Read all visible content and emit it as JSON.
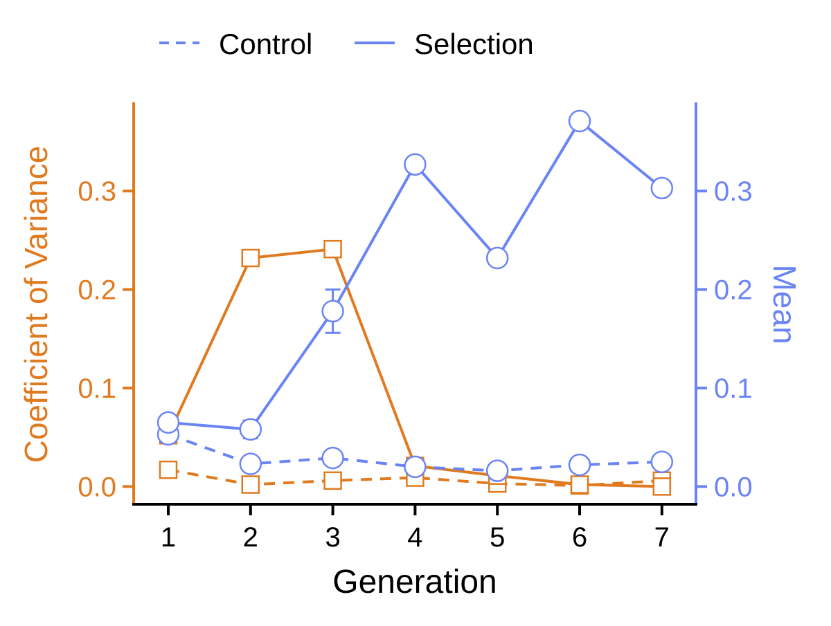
{
  "chart_data": {
    "type": "line",
    "xlabel": "Generation",
    "ylabel_left": "Coefficient of Variance",
    "ylabel_right": "Mean",
    "x": [
      1,
      2,
      3,
      4,
      5,
      6,
      7
    ],
    "x_ticks": [
      "1",
      "2",
      "3",
      "4",
      "5",
      "6",
      "7"
    ],
    "ylim_left": [
      -0.018,
      0.39
    ],
    "ylim_right": [
      -0.018,
      0.39
    ],
    "y_ticks_left": [
      "0.0",
      "0.1",
      "0.2",
      "0.3"
    ],
    "y_ticks_right": [
      "0.0",
      "0.1",
      "0.2",
      "0.3"
    ],
    "y_tick_values": [
      0.0,
      0.1,
      0.2,
      0.3
    ],
    "legend": {
      "placement": "top",
      "entries": [
        {
          "label": "Control",
          "style": "dashed"
        },
        {
          "label": "Selection",
          "style": "solid"
        }
      ]
    },
    "colors": {
      "cv": "#E07A1F",
      "mean": "#6B84F5",
      "axis": "#000000"
    },
    "series": [
      {
        "metric": "cv",
        "group": "Selection",
        "axis": "left",
        "marker": "square",
        "line": "solid",
        "values": [
          0.052,
          0.232,
          0.241,
          0.021,
          0.011,
          0.002,
          0.0
        ]
      },
      {
        "metric": "cv",
        "group": "Control",
        "axis": "left",
        "marker": "square",
        "line": "dashed",
        "values": [
          0.017,
          0.002,
          0.006,
          0.009,
          0.003,
          0.001,
          0.006
        ]
      },
      {
        "metric": "mean",
        "group": "Selection",
        "axis": "right",
        "marker": "circle",
        "line": "solid",
        "values": [
          0.065,
          0.058,
          0.178,
          0.327,
          0.232,
          0.371,
          0.303
        ],
        "error": [
          0.0,
          0.009,
          0.022,
          0.0,
          0.0,
          0.0,
          0.0
        ]
      },
      {
        "metric": "mean",
        "group": "Control",
        "axis": "right",
        "marker": "circle",
        "line": "dashed",
        "values": [
          0.053,
          0.023,
          0.029,
          0.02,
          0.016,
          0.022,
          0.025
        ]
      }
    ]
  }
}
